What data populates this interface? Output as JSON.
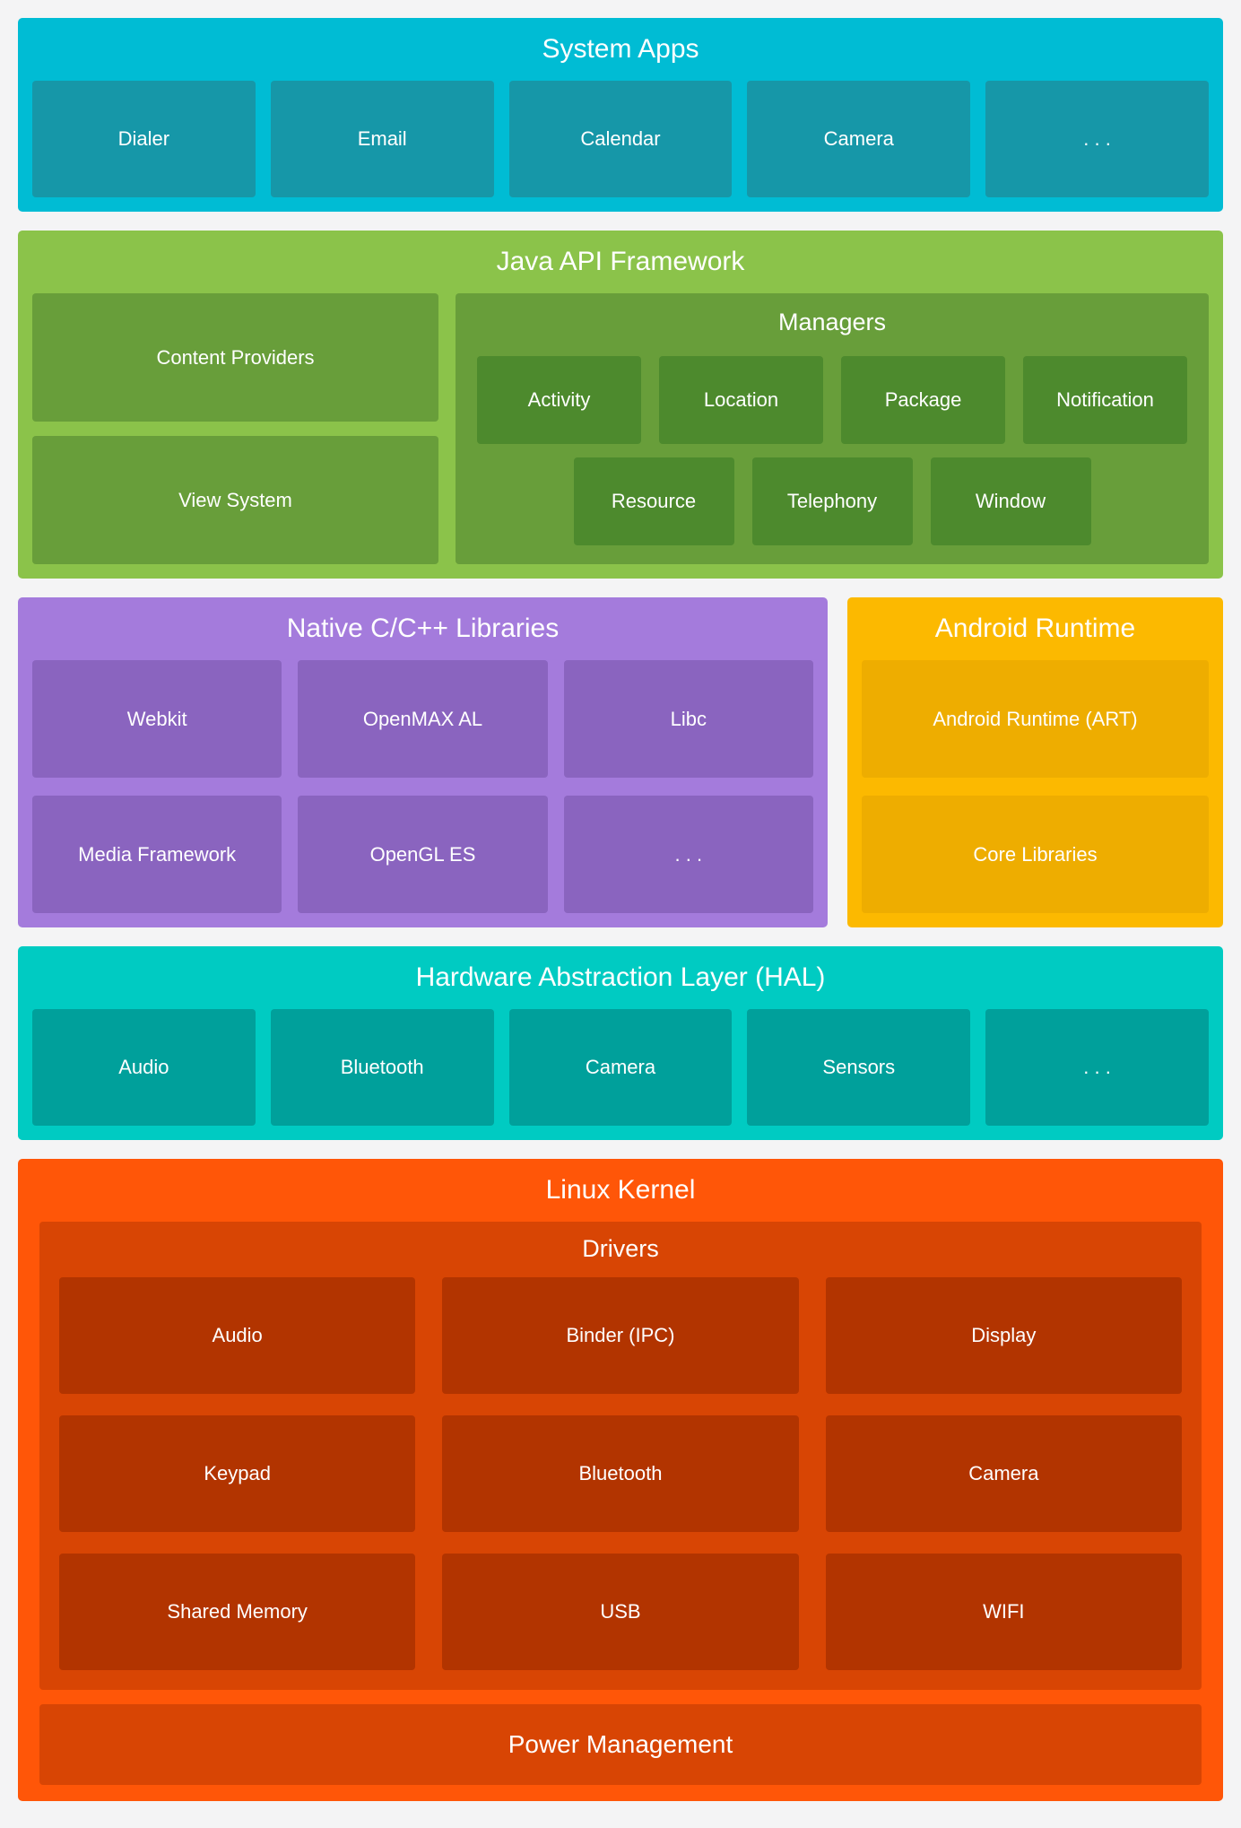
{
  "colors": {
    "page_background": "#f4f4f5",
    "text": "#ffffff",
    "system_apps": {
      "section": "#00bcd4",
      "box": "#1697a8"
    },
    "java_api": {
      "section": "#8bc34a",
      "box": "#689e3a",
      "chip": "#4d8a2d"
    },
    "native_libs": {
      "section": "#a47bdc",
      "box": "#8a64bf"
    },
    "android_runtime": {
      "section": "#fcb900",
      "box": "#eead00"
    },
    "hal": {
      "section": "#00cbc2",
      "box": "#00a09b"
    },
    "linux_kernel": {
      "section": "#ff5608",
      "panel": "#d84504",
      "box": "#b23400"
    }
  },
  "system_apps": {
    "title": "System Apps",
    "boxes": [
      "Dialer",
      "Email",
      "Calendar",
      "Camera",
      ". . ."
    ]
  },
  "java_api": {
    "title": "Java API Framework",
    "left_boxes": [
      "Content Providers",
      "View System"
    ],
    "managers": {
      "title": "Managers",
      "row1": [
        "Activity",
        "Location",
        "Package",
        "Notification"
      ],
      "row2": [
        "Resource",
        "Telephony",
        "Window"
      ]
    }
  },
  "native_libs": {
    "title": "Native C/C++ Libraries",
    "boxes": [
      "Webkit",
      "OpenMAX AL",
      "Libc",
      "Media Framework",
      "OpenGL ES",
      ". . ."
    ]
  },
  "android_runtime": {
    "title": "Android Runtime",
    "boxes": [
      "Android Runtime (ART)",
      "Core Libraries"
    ]
  },
  "hal": {
    "title": "Hardware Abstraction Layer (HAL)",
    "boxes": [
      "Audio",
      "Bluetooth",
      "Camera",
      "Sensors",
      ". . ."
    ]
  },
  "linux_kernel": {
    "title": "Linux Kernel",
    "drivers": {
      "title": "Drivers",
      "boxes": [
        "Audio",
        "Binder (IPC)",
        "Display",
        "Keypad",
        "Bluetooth",
        "Camera",
        "Shared Memory",
        "USB",
        "WIFI"
      ]
    },
    "power_label": "Power Management"
  }
}
